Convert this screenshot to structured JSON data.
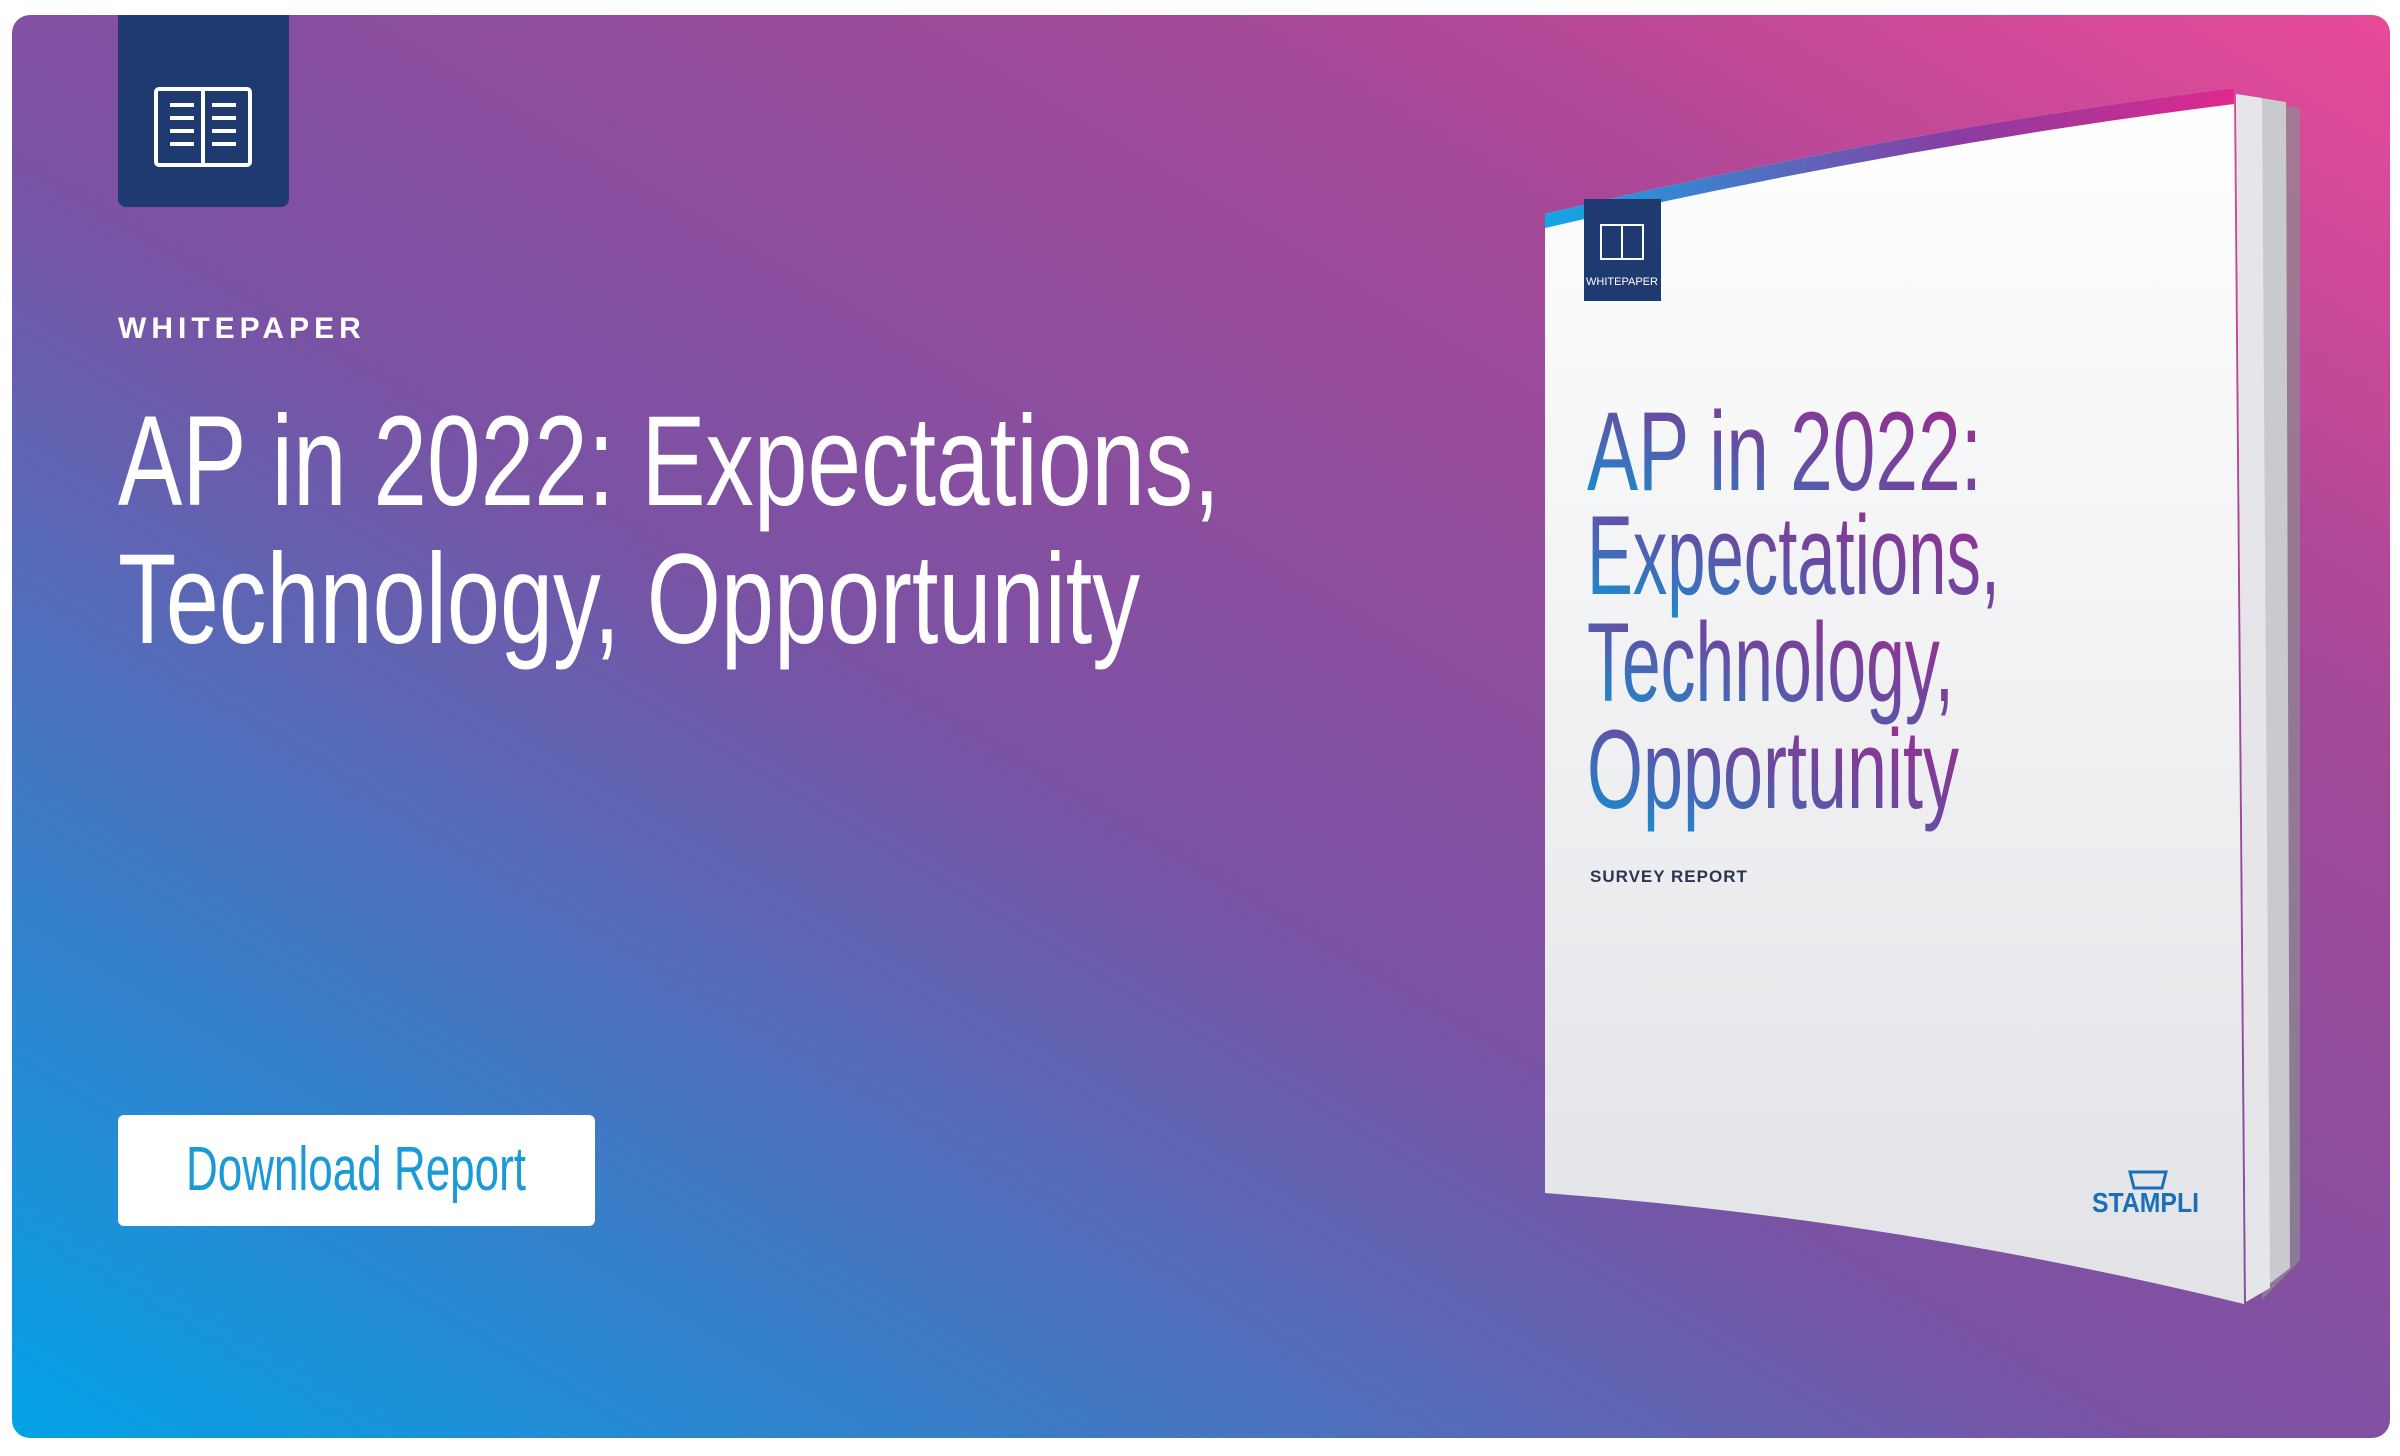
{
  "banner": {
    "label": "WHITEPAPER",
    "title": [
      "AP in 2022: Expectations,",
      "Technology, Opportunity"
    ],
    "button": "Download Report"
  },
  "book": {
    "label": "WHITEPAPER",
    "title": [
      "AP in 2022:",
      "Expectations,",
      "Technology,",
      "Opportunity"
    ],
    "subtitle": "SURVEY REPORT",
    "brand": "STAMPLI"
  }
}
